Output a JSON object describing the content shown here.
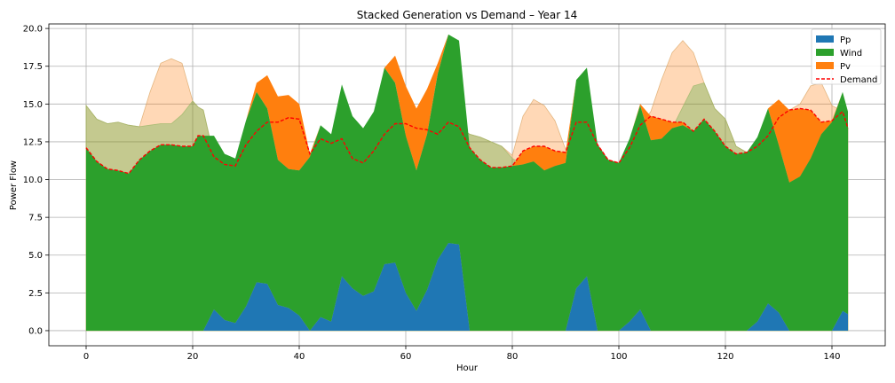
{
  "chart_data": {
    "type": "area",
    "title": "Stacked Generation vs Demand – Year 14",
    "xlabel": "Hour",
    "ylabel": "Power Flow",
    "xlim": [
      -7,
      150
    ],
    "ylim": [
      -1,
      20.3
    ],
    "xticks": [
      0,
      20,
      40,
      60,
      80,
      100,
      120,
      140
    ],
    "yticks": [
      "0.0",
      "2.5",
      "5.0",
      "7.5",
      "10.0",
      "12.5",
      "15.0",
      "17.5",
      "20.0"
    ],
    "grid": true,
    "legend_position": "top-right",
    "colors": {
      "pp": "#1f77b4",
      "wind": "#2ca02c",
      "pv": "#ff7f0e",
      "demand": "#ff0000",
      "wind_available": "#2ca02c",
      "pv_available": "#ff7f0e"
    },
    "x": [
      0,
      2,
      4,
      6,
      8,
      10,
      12,
      14,
      16,
      18,
      20,
      21,
      22,
      24,
      26,
      28,
      30,
      32,
      34,
      36,
      38,
      40,
      42,
      44,
      46,
      48,
      50,
      52,
      54,
      56,
      58,
      60,
      62,
      64,
      66,
      68,
      70,
      72,
      74,
      76,
      78,
      80,
      82,
      84,
      86,
      88,
      90,
      92,
      94,
      96,
      98,
      100,
      102,
      104,
      106,
      108,
      110,
      112,
      114,
      116,
      118,
      120,
      122,
      124,
      126,
      128,
      130,
      132,
      134,
      136,
      138,
      140,
      142,
      143
    ],
    "series": [
      {
        "name": "Pp",
        "values": [
          0,
          0,
          0,
          0,
          0,
          0,
          0,
          0,
          0,
          0,
          0,
          0,
          0,
          1.4,
          0.7,
          0.5,
          1.6,
          3.2,
          3.1,
          1.7,
          1.5,
          1.0,
          0.0,
          0.9,
          0.6,
          3.6,
          2.8,
          2.3,
          2.6,
          4.4,
          4.5,
          2.5,
          1.3,
          2.7,
          4.7,
          5.8,
          5.7,
          0,
          0,
          0,
          0,
          0,
          0,
          0,
          0,
          0,
          0,
          2.8,
          3.6,
          0,
          0,
          0,
          0.6,
          1.4,
          0,
          0,
          0,
          0,
          0,
          0,
          0,
          0,
          0,
          0,
          0.6,
          1.8,
          1.2,
          0,
          0,
          0,
          0,
          0,
          1.3,
          1.1
        ]
      },
      {
        "name": "Wind",
        "values": [
          12.1,
          11.2,
          10.7,
          10.6,
          10.4,
          11.3,
          11.9,
          12.3,
          12.3,
          12.2,
          12.2,
          12.9,
          12.9,
          11.5,
          11.0,
          10.9,
          12.3,
          12.6,
          11.6,
          9.6,
          9.2,
          9.6,
          11.5,
          12.7,
          12.4,
          12.7,
          11.4,
          11.1,
          11.9,
          13.0,
          11.9,
          10.4,
          9.3,
          10.3,
          12.3,
          13.8,
          13.5,
          12.1,
          11.3,
          10.8,
          10.8,
          10.9,
          11.0,
          11.2,
          10.6,
          10.9,
          11.1,
          13.8,
          13.8,
          12.3,
          11.3,
          11.1,
          12.1,
          13.5,
          12.6,
          12.7,
          13.4,
          13.6,
          13.2,
          14.0,
          13.2,
          12.2,
          11.7,
          11.8,
          12.2,
          12.9,
          11.1,
          9.8,
          10.2,
          11.4,
          13.0,
          13.8,
          14.5,
          13.4
        ]
      },
      {
        "name": "Pv",
        "values": [
          0,
          0,
          0,
          0,
          0,
          0,
          0,
          0,
          0,
          0,
          0,
          0,
          0,
          0,
          0,
          0,
          0,
          0.6,
          2.2,
          4.2,
          4.9,
          4.4,
          0.2,
          0,
          0,
          0,
          0,
          0,
          0,
          0,
          1.8,
          3.3,
          4.1,
          3.0,
          0.7,
          0,
          0,
          0,
          0,
          0,
          0,
          0,
          0.9,
          1.0,
          1.6,
          1.0,
          0.7,
          0,
          0,
          0,
          0,
          0,
          0,
          0.1,
          1.6,
          1.3,
          0.4,
          0.2,
          0,
          0,
          0,
          0,
          0,
          0,
          0,
          0,
          3.0,
          4.8,
          4.5,
          3.2,
          0.8,
          0.1,
          0,
          0
        ]
      },
      {
        "name": "Demand",
        "values": [
          12.1,
          11.2,
          10.7,
          10.6,
          10.4,
          11.3,
          11.9,
          12.3,
          12.3,
          12.2,
          12.2,
          12.9,
          12.9,
          11.5,
          11.0,
          10.9,
          12.3,
          13.2,
          13.8,
          13.8,
          14.1,
          14.0,
          11.7,
          12.7,
          12.4,
          12.7,
          11.4,
          11.1,
          11.9,
          13.0,
          13.7,
          13.7,
          13.4,
          13.3,
          13.0,
          13.8,
          13.5,
          12.1,
          11.3,
          10.8,
          10.8,
          10.9,
          11.9,
          12.2,
          12.2,
          11.9,
          11.8,
          13.8,
          13.8,
          12.3,
          11.3,
          11.1,
          12.1,
          13.6,
          14.2,
          14.0,
          13.8,
          13.8,
          13.2,
          14.0,
          13.2,
          12.2,
          11.7,
          11.8,
          12.2,
          12.9,
          14.1,
          14.6,
          14.7,
          14.6,
          13.8,
          13.9,
          14.5,
          13.4
        ]
      },
      {
        "name": "Wind available",
        "values": [
          14.9,
          14.0,
          13.7,
          13.8,
          13.6,
          13.5,
          13.6,
          13.7,
          13.7,
          14.3,
          15.2,
          14.8,
          14.6,
          11.5,
          11.0,
          10.9,
          12.3,
          12.6,
          11.6,
          9.6,
          9.2,
          9.6,
          11.5,
          12.7,
          12.4,
          12.7,
          11.4,
          11.1,
          11.9,
          13.0,
          11.9,
          10.4,
          9.3,
          10.3,
          12.3,
          13.8,
          13.5,
          13.0,
          12.8,
          12.5,
          12.2,
          11.4,
          11.0,
          11.2,
          10.6,
          10.9,
          11.1,
          13.8,
          13.8,
          12.3,
          11.3,
          11.1,
          12.1,
          13.5,
          12.6,
          12.7,
          13.4,
          14.8,
          16.2,
          16.4,
          14.7,
          14.0,
          12.2,
          11.8,
          12.2,
          12.9,
          11.1,
          9.8,
          10.2,
          11.4,
          13.0,
          13.8,
          14.5,
          13.4
        ]
      },
      {
        "name": "Pv available",
        "values": [
          14.9,
          14.0,
          13.7,
          13.8,
          13.6,
          13.5,
          15.8,
          17.7,
          18.0,
          17.7,
          15.2,
          14.8,
          14.6,
          11.5,
          11.0,
          10.9,
          12.3,
          13.2,
          13.8,
          13.8,
          14.1,
          14.0,
          11.7,
          12.7,
          12.4,
          12.7,
          11.4,
          11.1,
          11.9,
          13.0,
          13.7,
          13.7,
          13.4,
          13.3,
          13.0,
          13.8,
          13.5,
          13.0,
          12.8,
          12.5,
          12.2,
          11.6,
          14.2,
          15.3,
          14.9,
          13.9,
          12.0,
          13.8,
          13.8,
          12.3,
          11.3,
          11.1,
          12.1,
          13.6,
          14.5,
          16.6,
          18.4,
          19.2,
          18.4,
          16.4,
          14.7,
          14.0,
          12.2,
          11.8,
          12.2,
          12.9,
          14.1,
          14.6,
          15.0,
          16.2,
          16.4,
          14.9,
          14.5,
          13.4
        ]
      }
    ],
    "legend": [
      {
        "label": "Pp",
        "kind": "patch",
        "color": "#1f77b4"
      },
      {
        "label": "Wind",
        "kind": "patch",
        "color": "#2ca02c"
      },
      {
        "label": "Pv",
        "kind": "patch",
        "color": "#ff7f0e"
      },
      {
        "label": "Demand",
        "kind": "dashed-line",
        "color": "#ff0000"
      }
    ]
  }
}
